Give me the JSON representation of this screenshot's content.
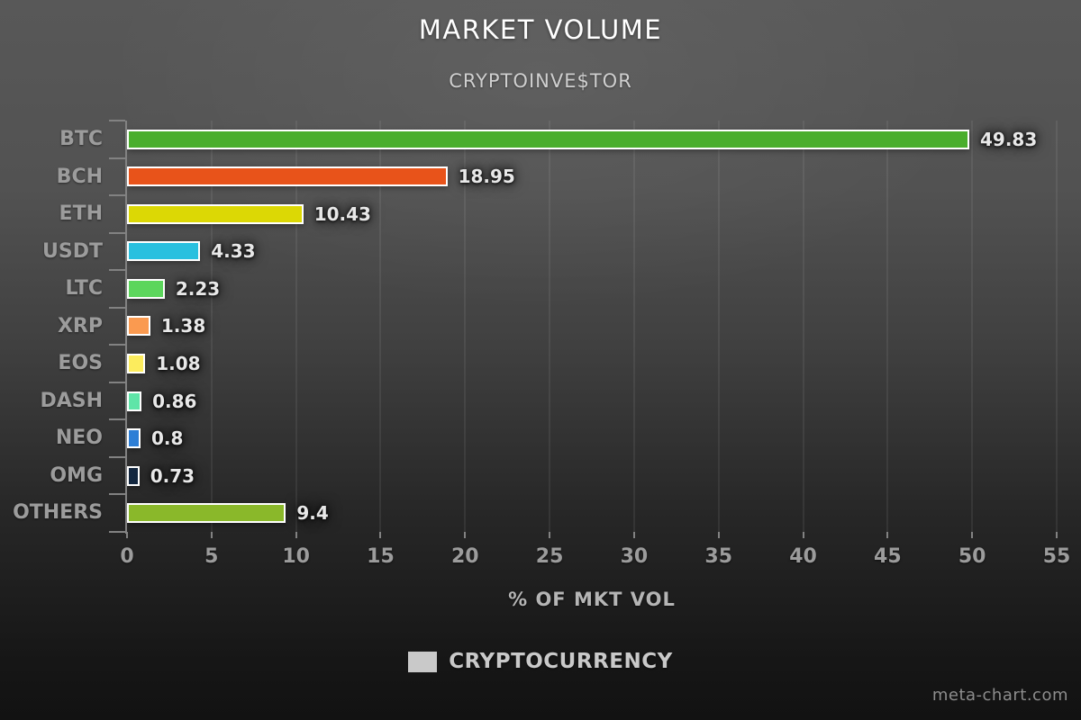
{
  "chart_data": {
    "type": "bar",
    "orientation": "horizontal",
    "title": "MARKET VOLUME",
    "subtitle": "CRYPTOINVE$TOR",
    "xlabel": "% OF MKT VOL",
    "categories": [
      "BTC",
      "BCH",
      "ETH",
      "USDT",
      "LTC",
      "XRP",
      "EOS",
      "DASH",
      "NEO",
      "OMG",
      "OTHERS"
    ],
    "values": [
      49.83,
      18.95,
      10.43,
      4.33,
      2.23,
      1.38,
      1.08,
      0.86,
      0.8,
      0.73,
      9.4
    ],
    "value_labels": [
      "49.83",
      "18.95",
      "10.43",
      "4.33",
      "2.23",
      "1.38",
      "1.08",
      "0.86",
      "0.8",
      "0.73",
      "9.4"
    ],
    "bar_colors": [
      "#4aae2d",
      "#e8531a",
      "#dcd805",
      "#29c0df",
      "#5cd65c",
      "#fa9a50",
      "#fcec5d",
      "#5fe5a8",
      "#2e7fd6",
      "#13273f",
      "#8ab82a"
    ],
    "bar_border_color": "#ffffff",
    "xlim": [
      0,
      55
    ],
    "xticks": [
      0,
      5,
      10,
      15,
      20,
      25,
      30,
      35,
      40,
      45,
      50,
      55
    ],
    "grid": "vertical",
    "legend": {
      "label": "CRYPTOCURRENCY",
      "swatch_color": "#c9c9c9",
      "position": "bottom"
    }
  },
  "watermark": {
    "text": "meta-chart.com"
  }
}
